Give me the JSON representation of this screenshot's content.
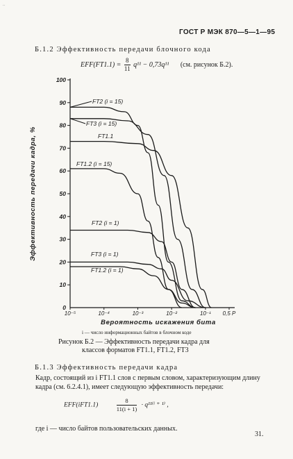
{
  "corner_mark": "..",
  "header": {
    "standard": "ГОСТ Р МЭК 870—5—1—95"
  },
  "section_b12": {
    "title": "Б.1.2 Эффективность передачи блочного кода",
    "formula_lhs": "EFF(FT1.1) =",
    "formula_num": "8",
    "formula_den": "11",
    "formula_rest": "q¹¹ − 0,73q¹¹",
    "formula_ref": "(см. рисунок Б.2)."
  },
  "chart_data": {
    "type": "line",
    "title": "",
    "xlabel": "Вероятность искажения бита",
    "ylabel": "Эффективность передачи кадра, %",
    "xscale": "log",
    "ylim": [
      0,
      100
    ],
    "xlim": [
      1e-05,
      0.5
    ],
    "yticks": [
      "0",
      "10",
      "20",
      "30",
      "40",
      "50",
      "60",
      "70",
      "80",
      "90",
      "100"
    ],
    "xticks": [
      "10⁻⁵",
      "10⁻⁴",
      "10⁻³",
      "10⁻²",
      "10⁻¹",
      "0,5 P"
    ],
    "grid": false,
    "series": [
      {
        "name": "FT2 (i = 15)",
        "x": [
          1e-05,
          0.0001,
          0.0004,
          0.001,
          0.002,
          0.004,
          0.008,
          0.02,
          0.05
        ],
        "values": [
          88,
          88,
          86,
          80,
          68,
          45,
          20,
          3,
          0
        ]
      },
      {
        "name": "FT3 (i = 15)",
        "x": [
          1e-05,
          0.0001,
          0.0005,
          0.002,
          0.006,
          0.015,
          0.04,
          0.1
        ],
        "values": [
          83,
          83,
          82,
          76,
          58,
          30,
          8,
          0
        ]
      },
      {
        "name": "FT1.1",
        "x": [
          1e-05,
          0.0001,
          0.001,
          0.003,
          0.01,
          0.03,
          0.08,
          0.15
        ],
        "values": [
          73,
          73,
          72,
          69,
          58,
          35,
          8,
          0
        ]
      },
      {
        "name": "FT1.2 (i = 15)",
        "x": [
          1e-05,
          0.0001,
          0.0003,
          0.001,
          0.002,
          0.004,
          0.008,
          0.02
        ],
        "values": [
          61,
          61,
          59,
          50,
          38,
          22,
          8,
          0
        ]
      },
      {
        "name": "FT2 (i = 1)",
        "x": [
          1e-05,
          0.0005,
          0.002,
          0.005,
          0.01,
          0.02,
          0.05
        ],
        "values": [
          34,
          34,
          33,
          29,
          20,
          8,
          0
        ]
      },
      {
        "name": "FT3 (i = 1)",
        "x": [
          1e-05,
          0.0005,
          0.002,
          0.005,
          0.01,
          0.03,
          0.1
        ],
        "values": [
          20,
          20,
          19,
          17,
          12,
          3,
          0
        ]
      },
      {
        "name": "FT1.2 (i = 1)",
        "x": [
          1e-05,
          0.0003,
          0.001,
          0.003,
          0.008,
          0.02,
          0.05
        ],
        "values": [
          18,
          18,
          17,
          14,
          8,
          2,
          0
        ]
      }
    ]
  },
  "figure": {
    "note": "i — число информационных байтов в блочном коде",
    "caption_line1": "Рисунок Б.2 — Эффективность передачи кадра для",
    "caption_line2": "классов форматов FT1.1, FT1.2, FT3"
  },
  "section_b13": {
    "title": "Б.1.3 Эффективность передачи кадра",
    "paragraph": "Кадр, состоящий из i FT1.1 слов с первым словом, характеризующим длину кадра (см. 6.2.4.1), имеет следующую эффективность передачи:",
    "formula_lhs": "EFF(iFT1.1)",
    "formula_num": "8",
    "formula_den": "11(i + 1)",
    "formula_rest": "· q¹¹⁽ⁱ ⁺ ¹⁾ ,",
    "where": "где i — число байтов пользовательских данных."
  },
  "page_number": "31."
}
